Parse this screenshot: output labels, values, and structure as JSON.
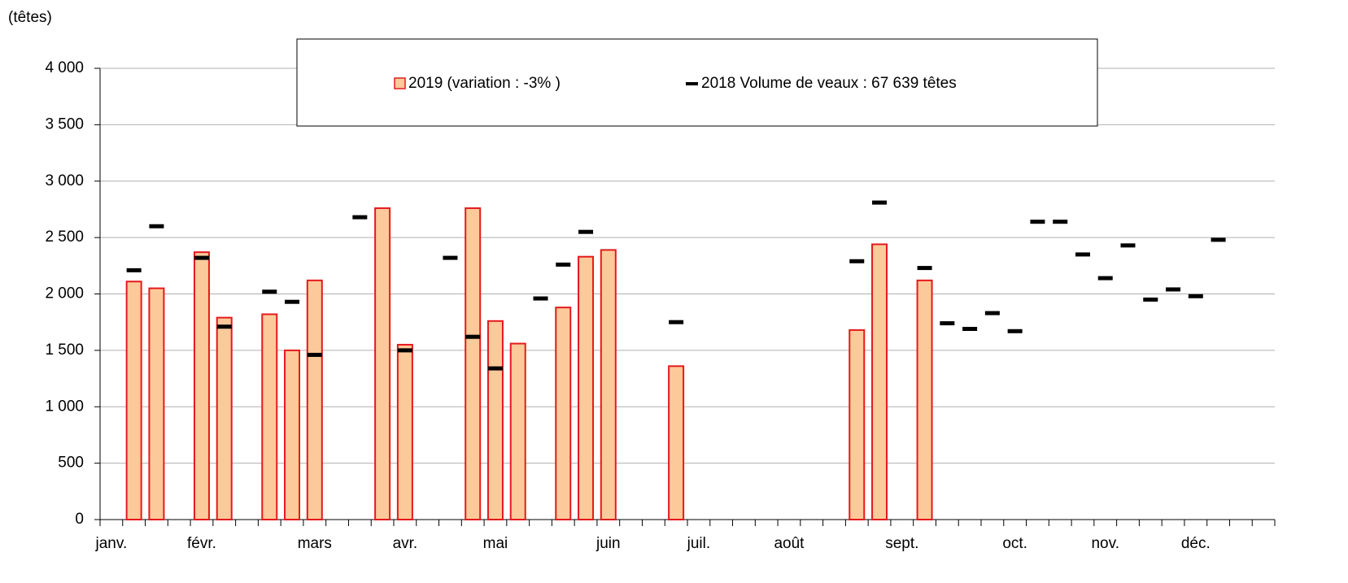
{
  "chart_data": {
    "type": "bar",
    "y_label": "(têtes)",
    "categories": [
      "janv.",
      null,
      null,
      null,
      "févr.",
      null,
      null,
      null,
      null,
      "mars",
      null,
      null,
      null,
      "avr.",
      null,
      null,
      null,
      "mai",
      null,
      null,
      null,
      null,
      "juin",
      null,
      null,
      null,
      "juil.",
      null,
      null,
      null,
      "août",
      null,
      null,
      null,
      null,
      "sept.",
      null,
      null,
      null,
      null,
      "oct.",
      null,
      null,
      null,
      "nov.",
      null,
      null,
      null,
      "déc.",
      null,
      null,
      null
    ],
    "series": [
      {
        "name": "2019 (variation : -3% )",
        "type": "bar",
        "color": "#fcc99a",
        "edge_color": "#e41a1c",
        "values": [
          null,
          2110,
          2050,
          null,
          2370,
          1790,
          null,
          1820,
          1500,
          2120,
          null,
          null,
          2760,
          1550,
          null,
          null,
          2760,
          1760,
          1560,
          null,
          1880,
          2330,
          2390,
          null,
          null,
          1360,
          null,
          null,
          null,
          null,
          null,
          null,
          null,
          1680,
          2440,
          null,
          2120,
          null,
          null,
          null,
          null,
          null,
          null,
          null,
          null,
          null,
          null,
          null,
          null,
          null,
          null,
          null
        ]
      },
      {
        "name": "2018 Volume de veaux : 67 639 têtes",
        "type": "marker",
        "color": "#000000",
        "values": [
          null,
          2210,
          2600,
          null,
          2320,
          1710,
          null,
          2020,
          1930,
          1460,
          null,
          2680,
          null,
          1500,
          null,
          2320,
          1620,
          1340,
          null,
          1960,
          2260,
          2550,
          null,
          null,
          null,
          1750,
          null,
          null,
          null,
          null,
          null,
          null,
          null,
          2290,
          2810,
          null,
          2230,
          1740,
          1690,
          1830,
          1670,
          2640,
          2640,
          2350,
          2140,
          2430,
          1950,
          2040,
          1980,
          2480,
          null,
          null
        ]
      }
    ],
    "ylim": [
      0,
      4000
    ],
    "yticks": [
      0,
      500,
      {
        "value": 1000,
        "label": "1 000"
      },
      {
        "value": 1500,
        "label": "1 500"
      },
      {
        "value": 2000,
        "label": "2 000"
      },
      {
        "value": 2500,
        "label": "2 500"
      },
      {
        "value": 3000,
        "label": "3 000"
      },
      {
        "value": 3500,
        "label": "3 500"
      },
      {
        "value": 4000,
        "label": "4 000"
      }
    ],
    "grid": true,
    "legend": "top"
  }
}
